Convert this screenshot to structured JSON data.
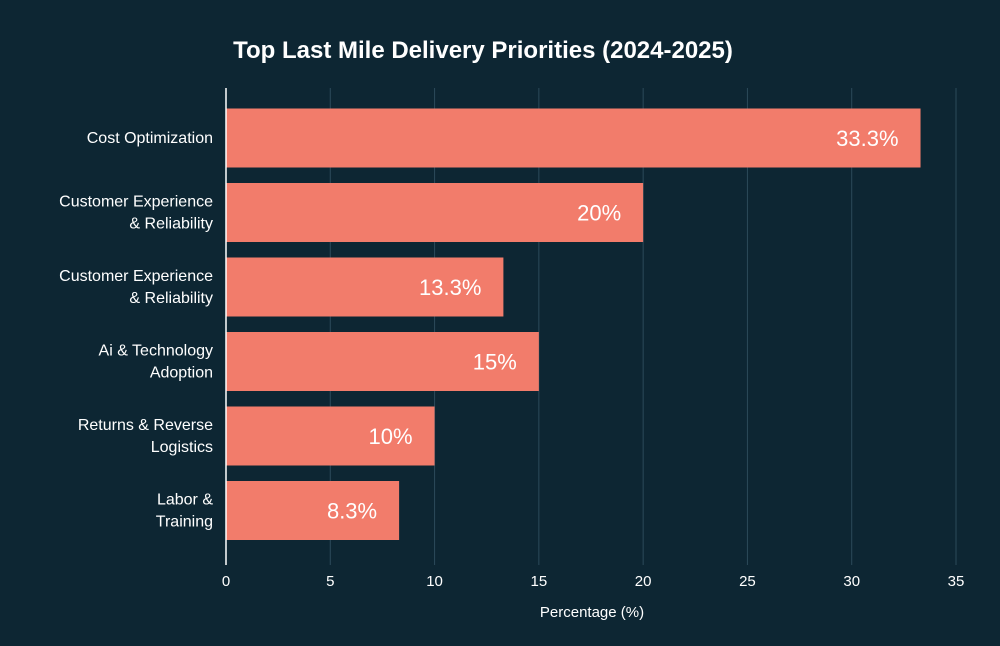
{
  "chart_data": {
    "type": "bar",
    "orientation": "horizontal",
    "title": "Top Last Mile Delivery Priorities (2024-2025)",
    "xlabel": "Percentage (%)",
    "ylabel": "",
    "xlim": [
      0,
      35
    ],
    "xticks": [
      0,
      5,
      10,
      15,
      20,
      25,
      30,
      35
    ],
    "grid": true,
    "categories": [
      [
        "Cost Optimization"
      ],
      [
        "Customer Experience",
        "& Reliability"
      ],
      [
        "Customer Experience",
        "& Reliability"
      ],
      [
        "Ai & Technology",
        "Adoption"
      ],
      [
        "Returns & Reverse",
        "Logistics"
      ],
      [
        "Labor &",
        "Training"
      ]
    ],
    "values": [
      33.3,
      20,
      13.3,
      15,
      10,
      8.3
    ],
    "data_labels": [
      "33.3%",
      "20%",
      "13.3%",
      "15%",
      "10%",
      "8.3%"
    ],
    "bar_color": "#f27c6b",
    "background_color": "#0d2633",
    "grid_color": "#2c4a5a"
  }
}
